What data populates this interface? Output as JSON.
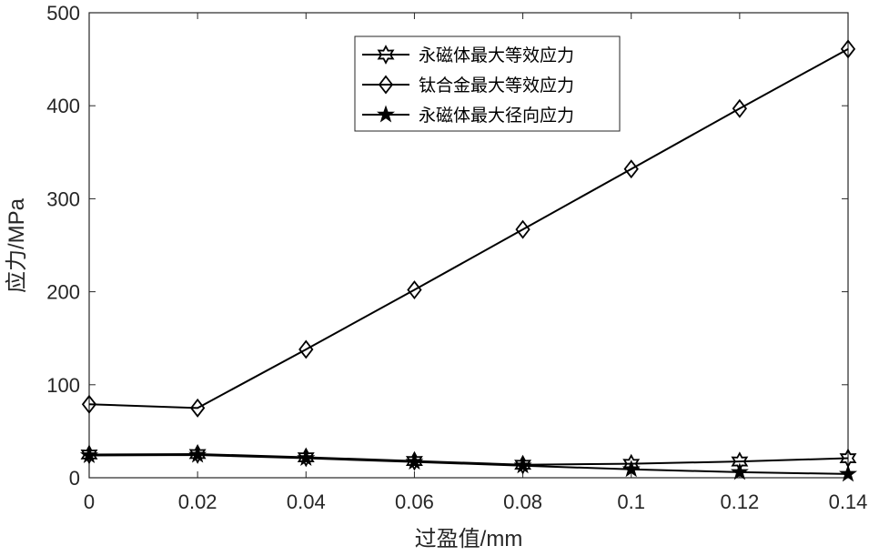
{
  "chart_data": {
    "type": "line",
    "title": "",
    "xlabel": "过盈值/mm",
    "ylabel": "应力/MPa",
    "xlim": [
      0,
      0.14
    ],
    "ylim": [
      0,
      500
    ],
    "xticks": [
      "0",
      "0.02",
      "0.04",
      "0.06",
      "0.08",
      "0.1",
      "0.12",
      "0.14"
    ],
    "yticks": [
      "0",
      "100",
      "200",
      "300",
      "400",
      "500"
    ],
    "x": [
      0,
      0.02,
      0.04,
      0.06,
      0.08,
      0.1,
      0.12,
      0.14
    ],
    "legend_position": "top-center",
    "grid": false,
    "line_color": "#000000",
    "series": [
      {
        "name": "永磁体最大等效应力",
        "marker": "hexagram",
        "values": [
          25,
          25.5,
          22,
          18,
          14,
          15,
          17.5,
          21
        ]
      },
      {
        "name": "钛合金最大等效应力",
        "marker": "diamond",
        "values": [
          79,
          75,
          138,
          202,
          267,
          332,
          397,
          461
        ]
      },
      {
        "name": "永磁体最大径向应力",
        "marker": "pentagram",
        "values": [
          24,
          24.5,
          21,
          17,
          13,
          9,
          6,
          4
        ]
      }
    ]
  }
}
